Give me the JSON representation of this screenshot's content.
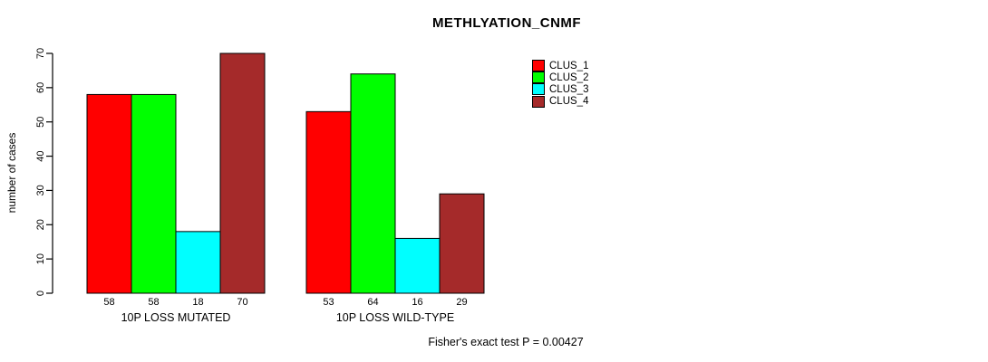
{
  "title": "METHLYATION_CNMF",
  "footer": "Fisher's exact test P = 0.00427",
  "chart_data": {
    "type": "bar",
    "title": "METHLYATION_CNMF",
    "xlabel": "",
    "ylabel": "number of cases",
    "ylim": [
      0,
      70
    ],
    "yticks": [
      0,
      10,
      20,
      30,
      40,
      50,
      60,
      70
    ],
    "grid": false,
    "categories": [
      "10P LOSS MUTATED",
      "10P LOSS WILD-TYPE"
    ],
    "series": [
      {
        "name": "CLUS_1",
        "color": "#ff0000",
        "values": [
          58,
          53
        ]
      },
      {
        "name": "CLUS_2",
        "color": "#00ff00",
        "values": [
          58,
          64
        ]
      },
      {
        "name": "CLUS_3",
        "color": "#00ffff",
        "values": [
          18,
          16
        ]
      },
      {
        "name": "CLUS_4",
        "color": "#a52a2a",
        "values": [
          70,
          29
        ]
      }
    ],
    "bar_value_labels": [
      [
        58,
        58,
        18,
        70
      ],
      [
        53,
        64,
        16,
        29
      ]
    ],
    "legend": {
      "position": "top-right",
      "entries": [
        "CLUS_1",
        "CLUS_2",
        "CLUS_3",
        "CLUS_4"
      ]
    },
    "annotation": "Fisher's exact test P = 0.00427"
  }
}
